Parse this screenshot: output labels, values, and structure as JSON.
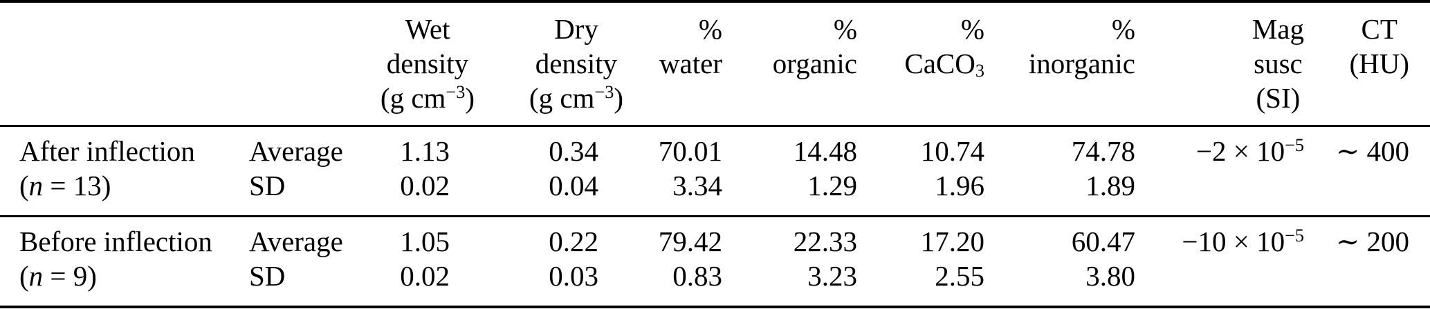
{
  "table": {
    "headers": {
      "row_label": "",
      "stat": "",
      "wet_density": [
        "Wet",
        "density",
        [
          "(g cm",
          {
            "sup": "−3"
          },
          ")"
        ]
      ],
      "dry_density": [
        "Dry",
        "density",
        [
          "(g cm",
          {
            "sup": "−3"
          },
          ")"
        ]
      ],
      "pct_water": [
        "%",
        "water"
      ],
      "pct_organic": [
        "%",
        "organic"
      ],
      "pct_caco3": [
        "%",
        [
          "CaCO",
          {
            "sub": "3"
          }
        ]
      ],
      "pct_inorganic": [
        "%",
        "inorganic"
      ],
      "mag_susc": [
        "Mag",
        "susc",
        "(SI)"
      ],
      "ct": [
        "CT",
        "(HU)"
      ]
    },
    "groups": [
      {
        "label_line_1": "After inflection",
        "label_line_2": [
          "(",
          {
            "i": "n"
          },
          " = 13)"
        ],
        "stat_labels": [
          "Average",
          "SD"
        ],
        "average": {
          "wet_density": "1.13",
          "dry_density": "0.34",
          "pct_water": "70.01",
          "pct_organic": "14.48",
          "pct_caco3": "10.74",
          "pct_inorganic": "74.78",
          "mag_susc": [
            "−2 × 10",
            {
              "sup": "−5"
            }
          ],
          "ct": "∼ 400"
        },
        "sd": {
          "wet_density": "0.02",
          "dry_density": "0.04",
          "pct_water": "3.34",
          "pct_organic": "1.29",
          "pct_caco3": "1.96",
          "pct_inorganic": "1.89",
          "mag_susc": "",
          "ct": ""
        }
      },
      {
        "label_line_1": "Before inflection",
        "label_line_2": [
          "(",
          {
            "i": "n"
          },
          " = 9)"
        ],
        "stat_labels": [
          "Average",
          "SD"
        ],
        "average": {
          "wet_density": "1.05",
          "dry_density": "0.22",
          "pct_water": "79.42",
          "pct_organic": "22.33",
          "pct_caco3": "17.20",
          "pct_inorganic": "60.47",
          "mag_susc": [
            "−10 × 10",
            {
              "sup": "−5"
            }
          ],
          "ct": "∼ 200"
        },
        "sd": {
          "wet_density": "0.02",
          "dry_density": "0.03",
          "pct_water": "0.83",
          "pct_organic": "3.23",
          "pct_caco3": "2.55",
          "pct_inorganic": "3.80",
          "mag_susc": "",
          "ct": ""
        }
      }
    ]
  }
}
